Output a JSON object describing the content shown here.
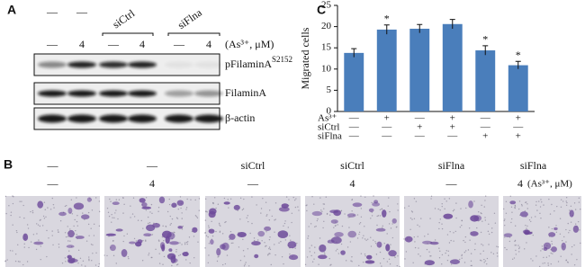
{
  "panel_labels": {
    "a": "A",
    "b": "B",
    "c": "C"
  },
  "blot": {
    "top_dashes": [
      "—",
      "—"
    ],
    "groups": [
      "siCtrl",
      "siFlna"
    ],
    "doses": [
      "—",
      "4",
      "—",
      "4",
      "—",
      "4"
    ],
    "unit": "(As³⁺, μM)",
    "rows": [
      {
        "label": "pFilaminA",
        "sup": "S2152"
      },
      {
        "label": "FilaminA"
      },
      {
        "label": "β-actin"
      }
    ]
  },
  "chart_data": {
    "type": "bar",
    "ylabel": "Migrated cells",
    "categories": [
      null,
      null,
      null,
      null,
      null,
      null
    ],
    "values": [
      13.8,
      19.3,
      19.5,
      20.6,
      14.4,
      10.9
    ],
    "errors": [
      1.0,
      1.1,
      1.0,
      1.1,
      1.1,
      0.9
    ],
    "markers": [
      null,
      "*",
      null,
      null,
      "*",
      "*"
    ],
    "color": "#4a7ebb",
    "ylim": [
      0,
      25
    ],
    "yticks": [
      0,
      5,
      10,
      15,
      20,
      25
    ],
    "conditions": [
      {
        "name": "As³⁺",
        "marks": [
          "—",
          "+",
          "—",
          "+",
          "—",
          "+"
        ]
      },
      {
        "name": "siCtrl",
        "marks": [
          "—",
          "—",
          "+",
          "+",
          "—",
          "—"
        ]
      },
      {
        "name": "siFlna",
        "marks": [
          "—",
          "—",
          "—",
          "—",
          "+",
          "+"
        ]
      }
    ]
  },
  "micrographs": {
    "treatments": [
      "—",
      "—",
      "siCtrl",
      "siCtrl",
      "siFlna",
      "siFlna"
    ],
    "doses": [
      "—",
      "4",
      "—",
      "4",
      "—",
      "4"
    ],
    "unit": "(As³⁺, μM)"
  }
}
